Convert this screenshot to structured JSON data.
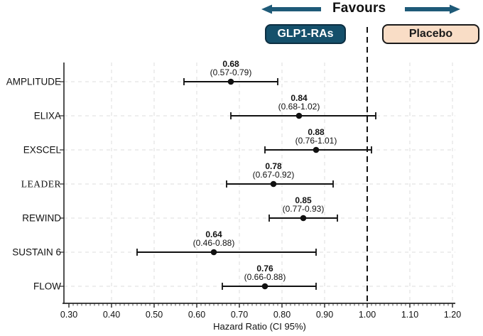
{
  "header": {
    "favours_label": "Favours",
    "groups": {
      "left": {
        "label": "GLP1-RAs"
      },
      "right": {
        "label": "Placebo"
      }
    }
  },
  "colors": {
    "arrow": "#1E5A78",
    "glp1_box_bg": "#15506B",
    "glp1_box_text": "#FFFFFF",
    "placebo_box_bg": "#F9DDC6",
    "placebo_box_text": "#1A1A1A",
    "axis": "#262626",
    "grid": "#DCDCDC",
    "data_ink": "#111111",
    "reference_line": "#111111",
    "flow_label": "#2E6BF5"
  },
  "chart_data": {
    "type": "scatter",
    "subtype": "forest-plot",
    "title": "",
    "xlabel": "Hazard Ratio (CI 95%)",
    "xlim": [
      0.3,
      1.2
    ],
    "xticks": [
      0.3,
      0.4,
      0.5,
      0.6,
      0.7,
      0.8,
      0.9,
      1.0,
      1.1,
      1.2
    ],
    "xtick_labels": [
      "0.30",
      "0.40",
      "0.50",
      "0.60",
      "0.70",
      "0.80",
      "0.90",
      "1.00",
      "1.10",
      "1.20"
    ],
    "minor_tick_step": 0.01,
    "reference_line_x": 1.0,
    "grid": true,
    "legend_position": "none",
    "studies": [
      {
        "name": "AMPLITUDE",
        "hr": 0.68,
        "ci_low": 0.57,
        "ci_high": 0.79,
        "value_label": "0.68",
        "ci_label": "(0.57-0.79)",
        "name_color": "#1A1A1A",
        "serif_name": false
      },
      {
        "name": "ELIXA",
        "hr": 0.84,
        "ci_low": 0.68,
        "ci_high": 1.02,
        "value_label": "0.84",
        "ci_label": "(0.68-1.02)",
        "name_color": "#1A1A1A",
        "serif_name": false
      },
      {
        "name": "EXSCEL",
        "hr": 0.88,
        "ci_low": 0.76,
        "ci_high": 1.01,
        "value_label": "0.88",
        "ci_label": "(0.76-1.01)",
        "name_color": "#1A1A1A",
        "serif_name": false
      },
      {
        "name": "LEADER",
        "hr": 0.78,
        "ci_low": 0.67,
        "ci_high": 0.92,
        "value_label": "0.78",
        "ci_label": "(0.67-0.92)",
        "name_color": "#1A1A1A",
        "serif_name": true
      },
      {
        "name": "REWIND",
        "hr": 0.85,
        "ci_low": 0.77,
        "ci_high": 0.93,
        "value_label": "0.85",
        "ci_label": "(0.77-0.93)",
        "name_color": "#1A1A1A",
        "serif_name": false
      },
      {
        "name": "SUSTAIN 6",
        "hr": 0.64,
        "ci_low": 0.46,
        "ci_high": 0.88,
        "value_label": "0.64",
        "ci_label": "(0.46-0.88)",
        "name_color": "#1A1A1A",
        "serif_name": false
      },
      {
        "name": "FLOW",
        "hr": 0.76,
        "ci_low": 0.66,
        "ci_high": 0.88,
        "value_label": "0.76",
        "ci_label": "(0.66-0.88)",
        "name_color": "#2E6BF5",
        "serif_name": false
      }
    ]
  }
}
